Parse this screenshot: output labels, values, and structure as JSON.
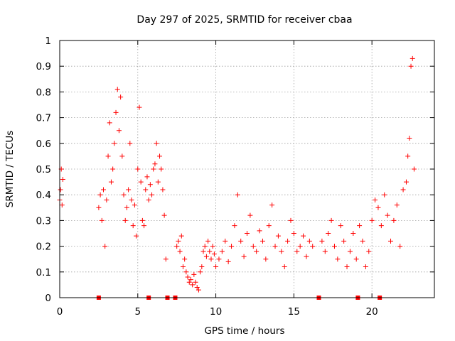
{
  "chart_data": {
    "type": "scatter",
    "title": "Day 297 of 2025, SRMTID for receiver cbaa",
    "xlabel": "GPS time / hours",
    "ylabel": "SRMTID / TECUs",
    "xlim": [
      0,
      24
    ],
    "ylim": [
      0,
      1
    ],
    "xticks": [
      0,
      5,
      10,
      15,
      20
    ],
    "yticks": [
      0,
      0.1,
      0.2,
      0.3,
      0.4,
      0.5,
      0.6,
      0.7,
      0.8,
      0.9,
      1
    ],
    "grid": true,
    "marker": "+",
    "color": "#ff0000",
    "gap_markers_x": [
      2.5,
      5.7,
      6.9,
      7.4,
      16.6,
      19.1,
      20.5
    ],
    "series": [
      {
        "name": "SRMTID",
        "x": [
          0.0,
          0.05,
          0.1,
          0.15,
          0.2,
          2.5,
          2.6,
          2.7,
          2.8,
          2.9,
          3.0,
          3.1,
          3.2,
          3.3,
          3.4,
          3.5,
          3.6,
          3.7,
          3.8,
          3.9,
          4.0,
          4.1,
          4.2,
          4.3,
          4.4,
          4.5,
          4.6,
          4.7,
          4.8,
          4.9,
          5.0,
          5.1,
          5.2,
          5.3,
          5.4,
          5.5,
          5.6,
          5.7,
          5.8,
          5.9,
          6.0,
          6.1,
          6.2,
          6.3,
          6.4,
          6.5,
          6.6,
          6.7,
          6.8,
          7.5,
          7.6,
          7.7,
          7.8,
          7.9,
          8.0,
          8.1,
          8.2,
          8.3,
          8.4,
          8.5,
          8.6,
          8.7,
          8.8,
          8.9,
          9.0,
          9.1,
          9.2,
          9.3,
          9.4,
          9.5,
          9.6,
          9.7,
          9.8,
          9.9,
          10.0,
          10.2,
          10.4,
          10.6,
          10.8,
          11.0,
          11.2,
          11.4,
          11.6,
          11.8,
          12.0,
          12.2,
          12.4,
          12.6,
          12.8,
          13.0,
          13.2,
          13.4,
          13.6,
          13.8,
          14.0,
          14.2,
          14.4,
          14.6,
          14.8,
          15.0,
          15.2,
          15.4,
          15.6,
          15.8,
          16.0,
          16.2,
          16.8,
          17.0,
          17.2,
          17.4,
          17.6,
          17.8,
          18.0,
          18.2,
          18.4,
          18.6,
          18.8,
          19.0,
          19.2,
          19.4,
          19.6,
          19.8,
          20.0,
          20.2,
          20.4,
          20.6,
          20.8,
          21.0,
          21.2,
          21.4,
          21.6,
          21.8,
          22.0,
          22.2,
          22.3,
          22.4,
          22.5,
          22.6,
          22.7
        ],
        "y": [
          0.38,
          0.42,
          0.5,
          0.36,
          0.46,
          0.35,
          0.4,
          0.3,
          0.42,
          0.2,
          0.38,
          0.55,
          0.68,
          0.45,
          0.5,
          0.6,
          0.72,
          0.81,
          0.65,
          0.78,
          0.55,
          0.4,
          0.3,
          0.35,
          0.42,
          0.6,
          0.38,
          0.28,
          0.36,
          0.24,
          0.5,
          0.74,
          0.45,
          0.3,
          0.28,
          0.42,
          0.47,
          0.38,
          0.44,
          0.4,
          0.5,
          0.52,
          0.6,
          0.45,
          0.55,
          0.5,
          0.42,
          0.32,
          0.15,
          0.2,
          0.22,
          0.18,
          0.24,
          0.12,
          0.15,
          0.1,
          0.08,
          0.06,
          0.07,
          0.05,
          0.09,
          0.06,
          0.04,
          0.03,
          0.1,
          0.12,
          0.18,
          0.2,
          0.16,
          0.22,
          0.18,
          0.15,
          0.2,
          0.17,
          0.12,
          0.15,
          0.18,
          0.22,
          0.14,
          0.2,
          0.28,
          0.4,
          0.22,
          0.16,
          0.25,
          0.32,
          0.2,
          0.18,
          0.26,
          0.22,
          0.15,
          0.28,
          0.36,
          0.2,
          0.24,
          0.18,
          0.12,
          0.22,
          0.3,
          0.25,
          0.18,
          0.2,
          0.24,
          0.16,
          0.22,
          0.2,
          0.22,
          0.18,
          0.25,
          0.3,
          0.2,
          0.15,
          0.28,
          0.22,
          0.12,
          0.18,
          0.25,
          0.15,
          0.28,
          0.22,
          0.12,
          0.18,
          0.3,
          0.38,
          0.35,
          0.28,
          0.4,
          0.32,
          0.22,
          0.3,
          0.36,
          0.2,
          0.42,
          0.45,
          0.55,
          0.62,
          0.9,
          0.93,
          0.5
        ]
      }
    ]
  }
}
